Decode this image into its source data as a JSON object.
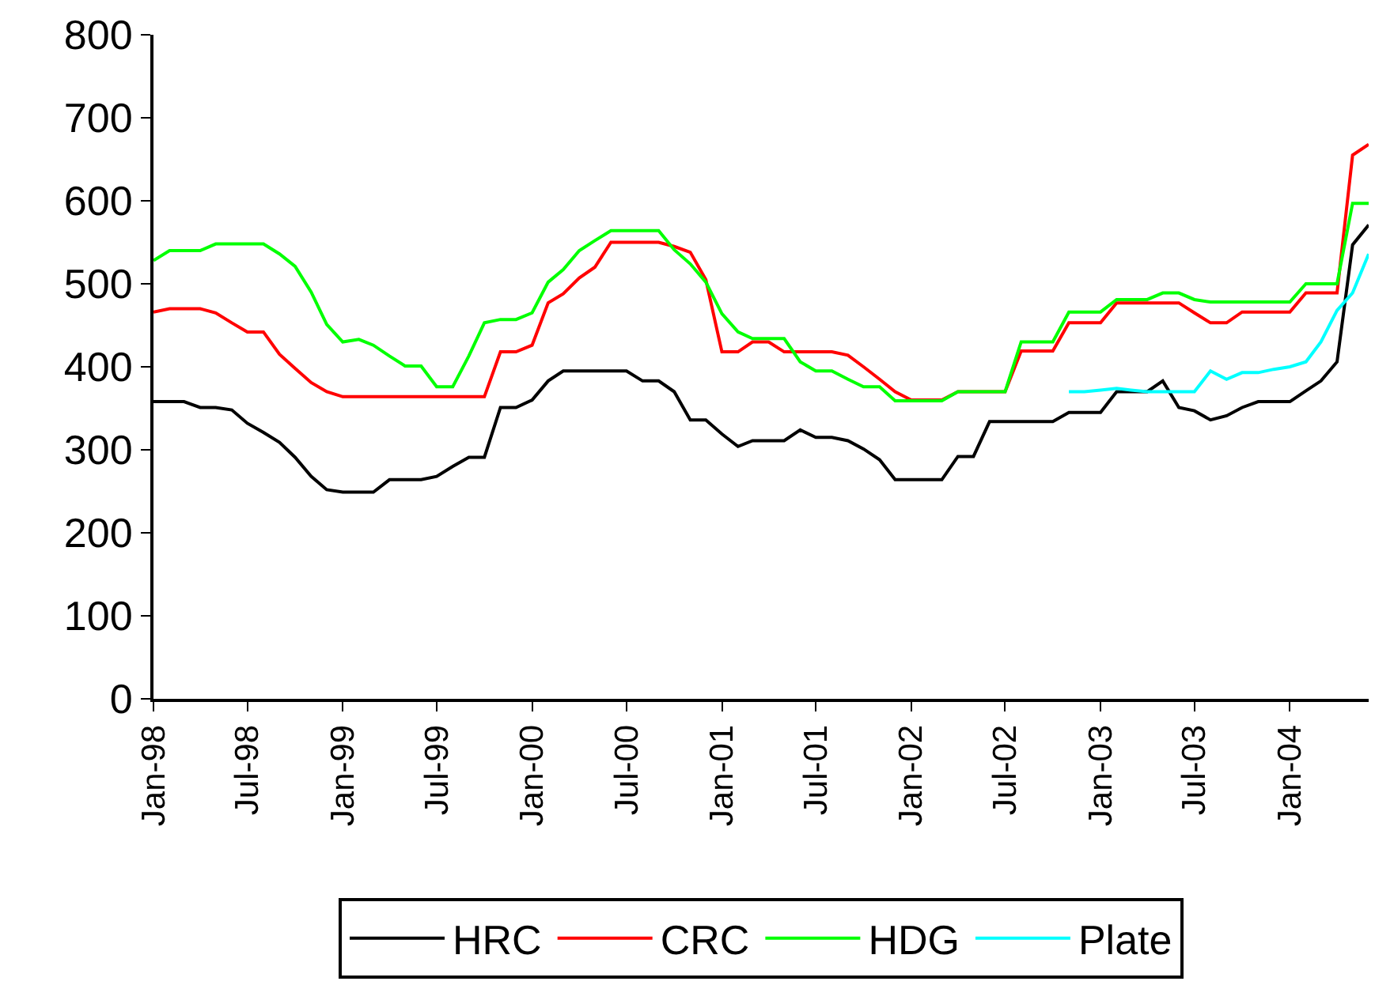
{
  "chart_data": {
    "type": "line",
    "x": [
      "1998-01",
      "1998-02",
      "1998-03",
      "1998-04",
      "1998-05",
      "1998-06",
      "1998-07",
      "1998-08",
      "1998-09",
      "1998-10",
      "1998-11",
      "1998-12",
      "1999-01",
      "1999-02",
      "1999-03",
      "1999-04",
      "1999-05",
      "1999-06",
      "1999-07",
      "1999-08",
      "1999-09",
      "1999-10",
      "1999-11",
      "1999-12",
      "2000-01",
      "2000-02",
      "2000-03",
      "2000-04",
      "2000-05",
      "2000-06",
      "2000-07",
      "2000-08",
      "2000-09",
      "2000-10",
      "2000-11",
      "2000-12",
      "2001-01",
      "2001-02",
      "2001-03",
      "2001-04",
      "2001-05",
      "2001-06",
      "2001-07",
      "2001-08",
      "2001-09",
      "2001-10",
      "2001-11",
      "2001-12",
      "2002-01",
      "2002-02",
      "2002-03",
      "2002-04",
      "2002-05",
      "2002-06",
      "2002-07",
      "2002-08",
      "2002-09",
      "2002-10",
      "2002-11",
      "2002-12",
      "2003-01",
      "2003-02",
      "2003-03",
      "2003-04",
      "2003-05",
      "2003-06",
      "2003-07",
      "2003-08",
      "2003-09",
      "2003-10",
      "2003-11",
      "2003-12",
      "2004-01",
      "2004-02",
      "2004-03",
      "2004-04",
      "2004-05",
      "2004-06"
    ],
    "series": [
      {
        "name": "HRC",
        "color": "#000000",
        "values": [
          358,
          358,
          358,
          351,
          351,
          348,
          332,
          321,
          309,
          291,
          268,
          252,
          249,
          249,
          249,
          264,
          264,
          264,
          268,
          280,
          291,
          291,
          351,
          351,
          360,
          383,
          395,
          395,
          395,
          395,
          395,
          383,
          383,
          370,
          336,
          336,
          319,
          304,
          311,
          311,
          311,
          324,
          315,
          315,
          311,
          301,
          288,
          264,
          264,
          264,
          264,
          292,
          292,
          334,
          334,
          334,
          334,
          334,
          345,
          345,
          345,
          370,
          370,
          370,
          383,
          351,
          347,
          336,
          341,
          351,
          358,
          358,
          358,
          371,
          383,
          406,
          547,
          571
        ]
      },
      {
        "name": "CRC",
        "color": "#ff0000",
        "values": [
          466,
          470,
          470,
          470,
          465,
          453,
          442,
          442,
          415,
          398,
          381,
          370,
          364,
          364,
          364,
          364,
          364,
          364,
          364,
          364,
          364,
          364,
          418,
          418,
          426,
          477,
          488,
          507,
          520,
          550,
          550,
          550,
          550,
          545,
          538,
          505,
          418,
          418,
          430,
          430,
          418,
          418,
          418,
          418,
          414,
          400,
          385,
          370,
          360,
          360,
          360,
          370,
          370,
          370,
          370,
          419,
          419,
          419,
          453,
          453,
          453,
          477,
          477,
          477,
          477,
          477,
          465,
          453,
          453,
          466,
          466,
          466,
          466,
          489,
          489,
          489,
          655,
          668
        ]
      },
      {
        "name": "HDG",
        "color": "#00ff00",
        "values": [
          528,
          540,
          540,
          540,
          548,
          548,
          548,
          548,
          536,
          521,
          490,
          451,
          430,
          433,
          426,
          413,
          401,
          401,
          376,
          376,
          413,
          453,
          457,
          457,
          465,
          502,
          517,
          540,
          552,
          564,
          564,
          564,
          564,
          541,
          524,
          502,
          464,
          442,
          434,
          434,
          434,
          406,
          395,
          395,
          385,
          376,
          376,
          359,
          359,
          359,
          359,
          370,
          370,
          370,
          370,
          430,
          430,
          430,
          466,
          466,
          466,
          481,
          481,
          481,
          489,
          489,
          481,
          478,
          478,
          478,
          478,
          478,
          478,
          500,
          500,
          500,
          597,
          597
        ]
      },
      {
        "name": "Plate",
        "color": "#00ffff",
        "values": [
          null,
          null,
          null,
          null,
          null,
          null,
          null,
          null,
          null,
          null,
          null,
          null,
          null,
          null,
          null,
          null,
          null,
          null,
          null,
          null,
          null,
          null,
          null,
          null,
          null,
          null,
          null,
          null,
          null,
          null,
          null,
          null,
          null,
          null,
          null,
          null,
          null,
          null,
          null,
          null,
          null,
          null,
          null,
          null,
          null,
          null,
          null,
          null,
          null,
          null,
          null,
          null,
          null,
          null,
          null,
          null,
          null,
          null,
          370,
          370,
          372,
          374,
          372,
          370,
          370,
          370,
          370,
          395,
          385,
          393,
          393,
          397,
          400,
          406,
          430,
          468,
          489,
          536
        ]
      }
    ],
    "xlim": [
      "1998-01",
      "2004-06"
    ],
    "xticks": [
      {
        "value": "1998-01",
        "label": "Jan-98"
      },
      {
        "value": "1998-07",
        "label": "Jul-98"
      },
      {
        "value": "1999-01",
        "label": "Jan-99"
      },
      {
        "value": "1999-07",
        "label": "Jul-99"
      },
      {
        "value": "2000-01",
        "label": "Jan-00"
      },
      {
        "value": "2000-07",
        "label": "Jul-00"
      },
      {
        "value": "2001-01",
        "label": "Jan-01"
      },
      {
        "value": "2001-07",
        "label": "Jul-01"
      },
      {
        "value": "2002-01",
        "label": "Jan-02"
      },
      {
        "value": "2002-07",
        "label": "Jul-02"
      },
      {
        "value": "2003-01",
        "label": "Jan-03"
      },
      {
        "value": "2003-07",
        "label": "Jul-03"
      },
      {
        "value": "2004-01",
        "label": "Jan-04"
      }
    ],
    "ylim": [
      0,
      800
    ],
    "yticks": [
      0,
      100,
      200,
      300,
      400,
      500,
      600,
      700,
      800
    ],
    "grid": false,
    "legend": "bottom",
    "marker": "none",
    "line_style": "solid"
  }
}
